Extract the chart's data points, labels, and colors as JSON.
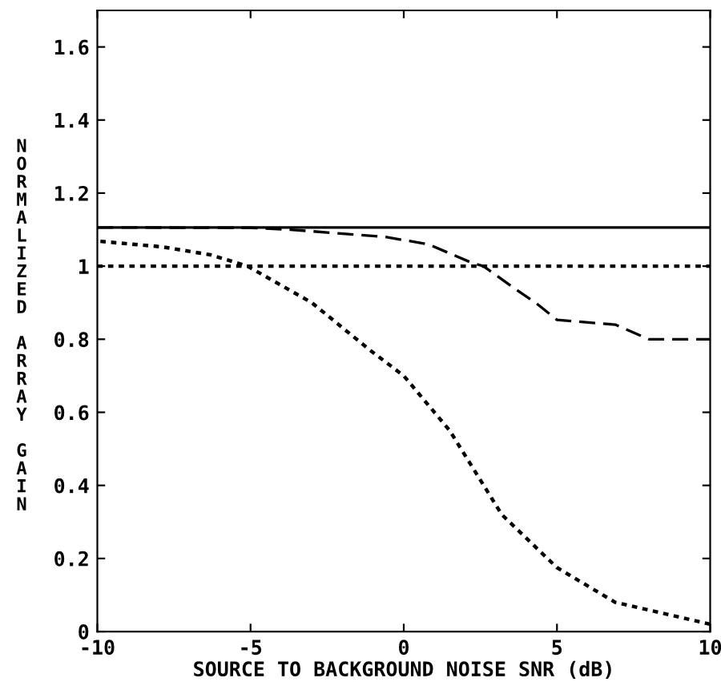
{
  "chart_data": {
    "type": "line",
    "xlabel": "SOURCE TO BACKGROUND NOISE SNR (dB)",
    "ylabel": "NORMALIZED ARRAY GAIN",
    "xlim": [
      -10,
      10
    ],
    "ylim": [
      0,
      1.7
    ],
    "xticks": [
      -10,
      -5,
      0,
      5,
      10
    ],
    "yticks": [
      0,
      0.2,
      0.4,
      0.6,
      0.8,
      1,
      1.2,
      1.4,
      1.6
    ],
    "grid": false,
    "legend": false,
    "series": [
      {
        "color": "#000000",
        "line_style": "solid",
        "x": [
          -10,
          10
        ],
        "values": [
          1.106,
          1.106
        ]
      },
      {
        "color": "#000000",
        "line_style": "dotted",
        "x": [
          -10,
          10
        ],
        "values": [
          1.0,
          1.0
        ]
      },
      {
        "color": "#000000",
        "line_style": "dashed",
        "x": [
          -10,
          -5,
          -3.7,
          -0.6,
          0.8,
          2.2,
          2.6,
          3.6,
          4.3,
          5.0,
          6.9,
          8.0,
          10
        ],
        "values": [
          1.106,
          1.105,
          1.1,
          1.08,
          1.06,
          1.01,
          1.0,
          0.94,
          0.9,
          0.853,
          0.84,
          0.8,
          0.8
        ]
      },
      {
        "color": "#000000",
        "line_style": "dotted",
        "x": [
          -9.9,
          -7.9,
          -6.3,
          -5.1,
          -3.0,
          -1.1,
          0,
          1.0,
          1.5,
          3.2,
          5.0,
          6.9,
          10
        ],
        "values": [
          1.068,
          1.053,
          1.031,
          1.0,
          0.9,
          0.77,
          0.7,
          0.6,
          0.55,
          0.32,
          0.175,
          0.08,
          0.02
        ]
      }
    ]
  }
}
